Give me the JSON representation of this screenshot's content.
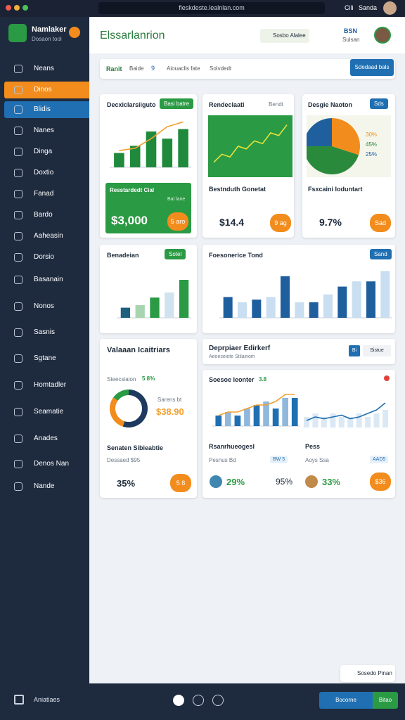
{
  "browser": {
    "url": "fleskdeste.lealnlan.com",
    "right1": "Cili",
    "right2": "Sanda"
  },
  "sidebar": {
    "brand": "Namlaker",
    "tagline": "Dosaon tool",
    "items": [
      "Neans",
      "Dinos",
      "Blidis",
      "Nanes",
      "Dinga",
      "Doxtio",
      "Fanad",
      "Bardo",
      "Aaheasin",
      "Dorsio",
      "Basanain",
      "Nonos",
      "Sasnis",
      "Sgtane",
      "Homtadler",
      "Seamatie",
      "Anades",
      "Denos Nan",
      "Nande"
    ]
  },
  "header": {
    "title": "Elssarlanrion",
    "badge": "Sosbo Alalee",
    "stat_top": "BSN",
    "stat_bottom": "Sulsan"
  },
  "toolbar": {
    "tabs": [
      "Ranit",
      "Baide",
      "Aiouaclis fate",
      "Solvdedt"
    ],
    "count": "9",
    "button": "Sdedaad bals"
  },
  "cards": [
    {
      "title": "Decxiclarsiiguto",
      "badge": "Basi batre",
      "chart": {
        "type": "bar",
        "values": [
          3,
          4.5,
          7.5,
          6,
          8
        ],
        "line": [
          3.5,
          4,
          6,
          8.5,
          9.5
        ],
        "ylim": [
          0,
          10
        ]
      },
      "panel_title": "Resstardedt Cial",
      "panel_sub": "Bal lane",
      "value": "$3,000",
      "action": "5 aro"
    },
    {
      "title": "Rendeclaati",
      "badge": "Bendt",
      "chart": {
        "type": "line",
        "values": [
          2,
          3.5,
          3,
          5,
          4.5,
          6,
          5.5,
          7.5,
          7,
          9
        ],
        "ylim": [
          0,
          10
        ]
      },
      "caption": "Bestnduth Gonetat",
      "value": "$14.4",
      "action": "9 ag"
    },
    {
      "title": "Desgie Naoton",
      "badge": "Sds",
      "chart": {
        "type": "pie",
        "values": [
          30,
          45,
          25
        ],
        "value_labels": [
          "30%",
          "45%",
          "25%"
        ]
      },
      "caption": "Fsxcaini Ioduntart",
      "value": "9.7%",
      "action": "Sad"
    },
    {
      "title": "Benadeian",
      "badge": "Sotel",
      "chart": {
        "type": "bar",
        "values": [
          2,
          2.5,
          4,
          5,
          7.5
        ],
        "ylim": [
          0,
          10
        ]
      }
    },
    {
      "title": "Foesonerice Tond",
      "badge": "Sand",
      "chart": {
        "type": "bar",
        "values": [
          4,
          3,
          3.5,
          4,
          8,
          3,
          3,
          4.5,
          6,
          7,
          7,
          9
        ],
        "ylim": [
          0,
          10
        ]
      }
    },
    {
      "title": "Valaaan Icaitriars",
      "subtitle": "Steecsiaion",
      "delta": "5 8%",
      "chart": {
        "type": "donut",
        "values": [
          55,
          30,
          15
        ]
      },
      "legend": "Sarens bt",
      "amount": "$38.90",
      "caption": "Senaten Sibieabtie",
      "sub": "Dessaed $95",
      "value": "35%",
      "action": "5 8"
    },
    {
      "title": "Deprpiaer Edirkerf",
      "subtitle": "Aeoeseiete Stilainom",
      "buttons": [
        "Bi",
        "Sistue"
      ]
    },
    {
      "title": "Soesoe Ieonter",
      "delta": "3.8",
      "chart_a": {
        "type": "bar",
        "values": [
          3,
          4,
          3,
          5,
          6,
          7,
          5,
          8,
          8
        ],
        "line": [
          3,
          4,
          4,
          5,
          6,
          6,
          7,
          9,
          9
        ],
        "ylim": [
          0,
          10
        ]
      },
      "chart_b": {
        "type": "line",
        "values": [
          2,
          3,
          2.5,
          3,
          3.5,
          2.5,
          3,
          4,
          5,
          7
        ],
        "bars": [
          3,
          4,
          3,
          4,
          3,
          3,
          4,
          3,
          4,
          5
        ],
        "ylim": [
          0,
          10
        ]
      },
      "stats": [
        {
          "label": "Rsanrhueogesl",
          "sub": "Pesnus Bd",
          "tag": "BW 5",
          "value": "29%",
          "value2": "95%"
        },
        {
          "label": "Pess",
          "sub": "Aoys Ssa",
          "tag": "AAD5",
          "value": "33%",
          "action": "$36"
        }
      ]
    }
  ],
  "footer": {
    "label": "Aniatiaes",
    "buttons": [
      "Bocorne",
      "Bitao"
    ],
    "float": "Sosedo Pinan"
  }
}
